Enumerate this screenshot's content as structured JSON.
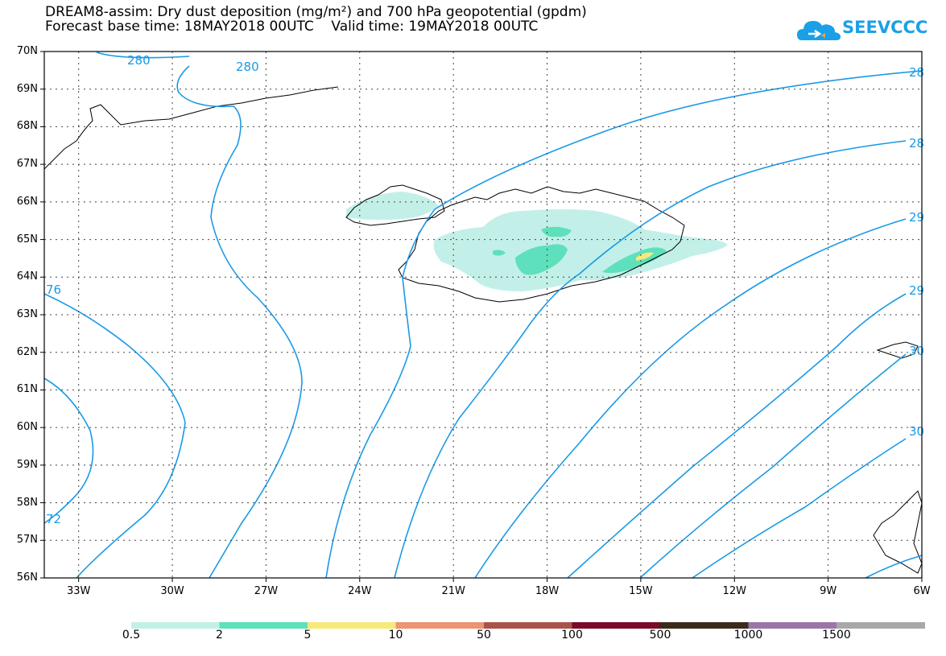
{
  "title": {
    "line1": "DREAM8-assim: Dry dust deposition (mg/m²) and 700 hPa geopotential (gpdm)",
    "line2": "Forecast base time: 18MAY2018 00UTC    Valid time: 19MAY2018 00UTC"
  },
  "logo": {
    "text": "SEEVCCC",
    "color": "#1aa0e8",
    "icon": "cloud-icon"
  },
  "map": {
    "lat_labels": [
      "70N",
      "69N",
      "68N",
      "67N",
      "66N",
      "65N",
      "64N",
      "63N",
      "62N",
      "61N",
      "60N",
      "59N",
      "58N",
      "57N",
      "56N"
    ],
    "lon_labels": [
      "33W",
      "30W",
      "27W",
      "24W",
      "21W",
      "18W",
      "15W",
      "12W",
      "9W",
      "6W"
    ],
    "contour_color": "#1a9ae6",
    "contour_labels": [
      "280",
      "280",
      "28",
      "28",
      "29",
      "29",
      "30",
      "30",
      "76",
      "72"
    ]
  },
  "legend": {
    "labels": [
      "0.5",
      "2",
      "5",
      "10",
      "50",
      "100",
      "500",
      "1000",
      "1500"
    ],
    "colors": [
      "#c2f0e8",
      "#5ee0bc",
      "#f7e97a",
      "#ec9473",
      "#a8544a",
      "#7a0a2a",
      "#3c2a1a",
      "#9a76a8",
      "#a8a8a8"
    ]
  }
}
